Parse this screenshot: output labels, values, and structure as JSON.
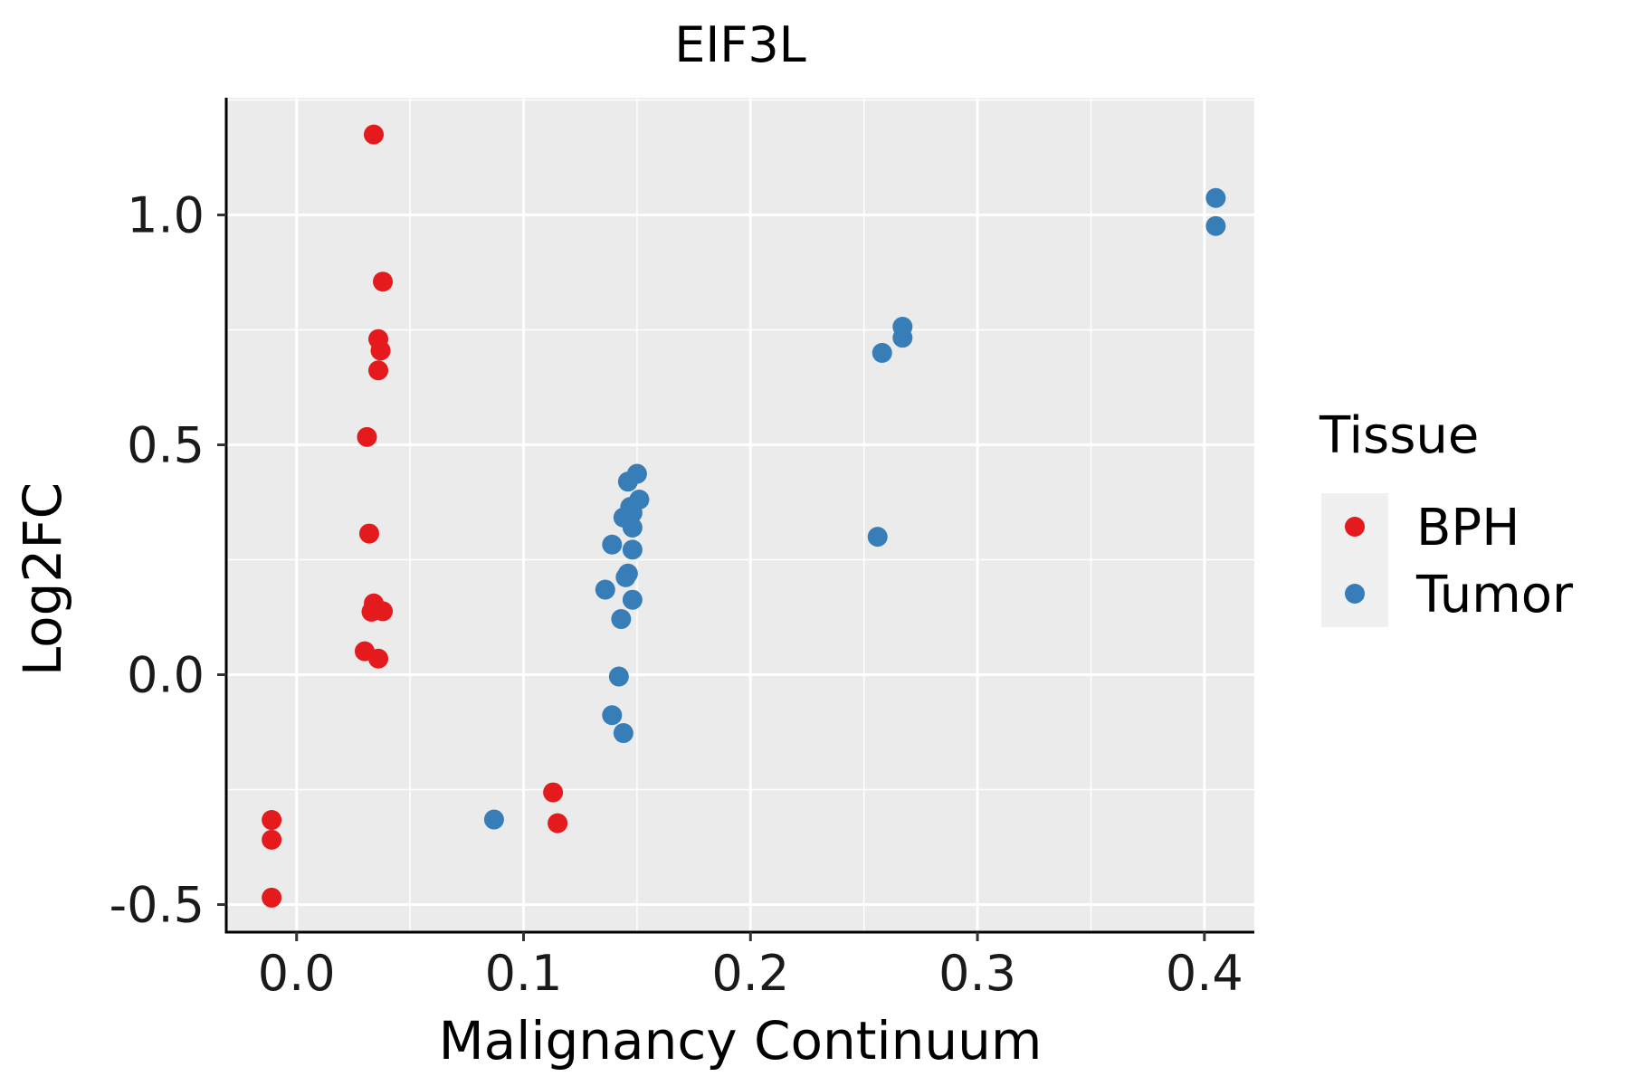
{
  "chart_data": {
    "type": "scatter",
    "title": "EIF3L",
    "xlabel": "Malignancy Continuum",
    "ylabel": "Log2FC",
    "xlim": [
      -0.031,
      0.422
    ],
    "ylim": [
      -0.56,
      1.255
    ],
    "x_ticks": [
      0.0,
      0.1,
      0.2,
      0.3,
      0.4
    ],
    "x_tick_labels": [
      "0.0",
      "0.1",
      "0.2",
      "0.3",
      "0.4"
    ],
    "y_ticks": [
      -0.5,
      0.0,
      0.5,
      1.0
    ],
    "y_tick_labels": [
      "-0.5",
      "0.0",
      "0.5",
      "1.0"
    ],
    "grid": true,
    "legend": {
      "title": "Tissue",
      "position": "right",
      "entries": [
        {
          "label": "BPH",
          "color": "#E41A1C"
        },
        {
          "label": "Tumor",
          "color": "#377EB8"
        }
      ]
    },
    "series": [
      {
        "name": "BPH",
        "color": "#E41A1C",
        "points": [
          [
            0.034,
            1.175
          ],
          [
            0.038,
            0.855
          ],
          [
            0.036,
            0.73
          ],
          [
            0.037,
            0.705
          ],
          [
            0.036,
            0.662
          ],
          [
            0.031,
            0.517
          ],
          [
            0.032,
            0.307
          ],
          [
            0.034,
            0.155
          ],
          [
            0.033,
            0.137
          ],
          [
            0.038,
            0.138
          ],
          [
            0.03,
            0.051
          ],
          [
            0.036,
            0.035
          ],
          [
            -0.011,
            -0.316
          ],
          [
            -0.011,
            -0.359
          ],
          [
            -0.011,
            -0.485
          ],
          [
            0.113,
            -0.256
          ],
          [
            0.115,
            -0.323
          ]
        ]
      },
      {
        "name": "Tumor",
        "color": "#377EB8",
        "points": [
          [
            0.405,
            1.037
          ],
          [
            0.405,
            0.976
          ],
          [
            0.267,
            0.757
          ],
          [
            0.267,
            0.733
          ],
          [
            0.258,
            0.7
          ],
          [
            0.256,
            0.3
          ],
          [
            0.15,
            0.437
          ],
          [
            0.146,
            0.42
          ],
          [
            0.151,
            0.381
          ],
          [
            0.147,
            0.365
          ],
          [
            0.148,
            0.352
          ],
          [
            0.144,
            0.342
          ],
          [
            0.148,
            0.32
          ],
          [
            0.139,
            0.283
          ],
          [
            0.148,
            0.272
          ],
          [
            0.146,
            0.22
          ],
          [
            0.145,
            0.212
          ],
          [
            0.136,
            0.185
          ],
          [
            0.148,
            0.163
          ],
          [
            0.143,
            0.121
          ],
          [
            0.142,
            -0.004
          ],
          [
            0.139,
            -0.088
          ],
          [
            0.144,
            -0.127
          ],
          [
            0.087,
            -0.315
          ]
        ]
      }
    ]
  }
}
